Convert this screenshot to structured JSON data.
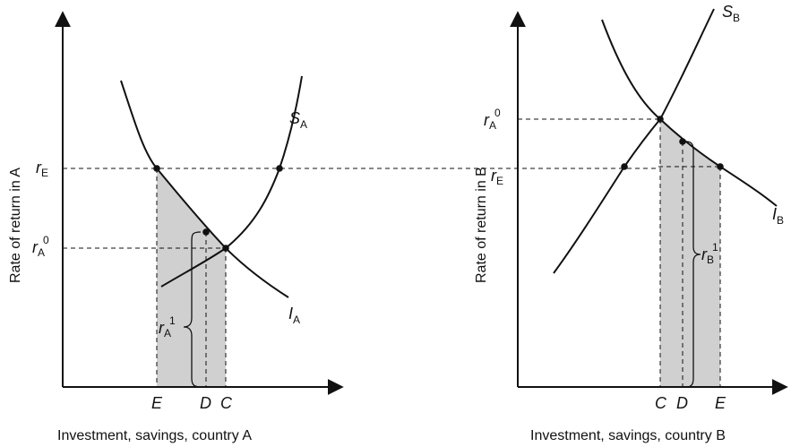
{
  "panel_a": {
    "xlabel": "Investment, savings, country A",
    "ylabel": "Rate of return in A",
    "curve_s": {
      "main": "S",
      "sub": "A"
    },
    "curve_i": {
      "main": "I",
      "sub": "A"
    },
    "r_e": {
      "main": "r",
      "sub": "E"
    },
    "r_a0": {
      "main": "r",
      "sub": "A",
      "sup": "0"
    },
    "r_a1": {
      "main": "r",
      "sub": "A",
      "sup": "1"
    },
    "x_e": "E",
    "x_d": "D",
    "x_c": "C"
  },
  "panel_b": {
    "xlabel": "Investment, savings, country B",
    "ylabel": "Rate of return in B",
    "curve_s": {
      "main": "S",
      "sub": "B"
    },
    "curve_i": {
      "main": "I",
      "sub": "B"
    },
    "r_e": {
      "main": "r",
      "sub": "E"
    },
    "r_a0": {
      "main": "r",
      "sub": "A",
      "sup": "0"
    },
    "r_b1": {
      "main": "r",
      "sub": "B",
      "sup": "1"
    },
    "x_c": "C",
    "x_d": "D",
    "x_e": "E"
  },
  "colors": {
    "shade": "#d0d0d0",
    "line": "#111111"
  }
}
